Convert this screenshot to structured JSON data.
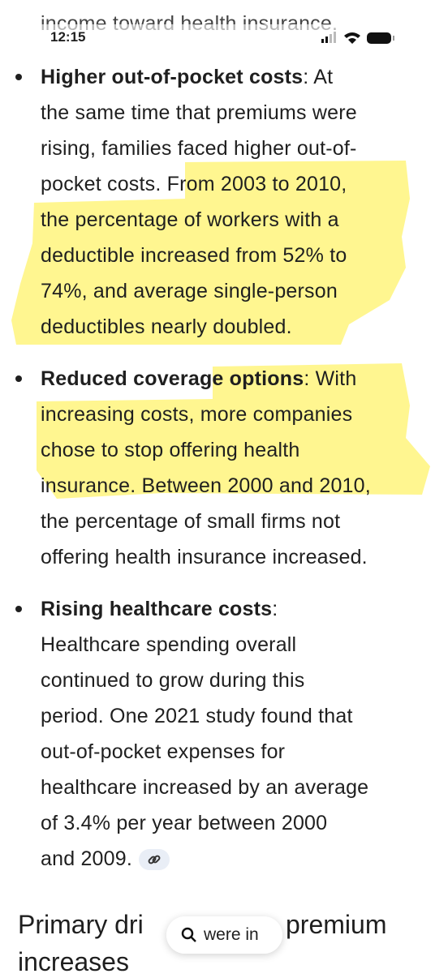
{
  "status_bar": {
    "time": "12:15"
  },
  "top_partial_text": "income toward health insurance.",
  "bullets": [
    {
      "title": "Higher out-of-pocket costs",
      "lines": [
        ": At",
        "the same time that premiums were",
        "rising, families faced higher out-of-",
        "pocket costs. From 2003 to 2010,",
        "the percentage of workers with a",
        "deductible increased from 52% to",
        "74%, and average single-person",
        "deductibles nearly doubled."
      ]
    },
    {
      "title": "Reduced coverage options",
      "lines": [
        ": With",
        "increasing costs, more companies",
        "chose to stop offering health",
        "insurance. Between 2000 and 2010,",
        "the percentage of small firms not",
        "offering health insurance increased."
      ]
    },
    {
      "title": "Rising healthcare costs",
      "lines": [
        ":",
        "Healthcare spending overall",
        "continued to grow during this",
        "period. One 2021 study found that",
        "out-of-pocket expenses for",
        "healthcare increased by an average",
        "of 3.4% per year between 2000",
        "and 2009."
      ]
    }
  ],
  "heading": {
    "part1": "Primary dri",
    "part2": "premium",
    "line2": "increases"
  },
  "search_pill": {
    "text": "were in"
  }
}
